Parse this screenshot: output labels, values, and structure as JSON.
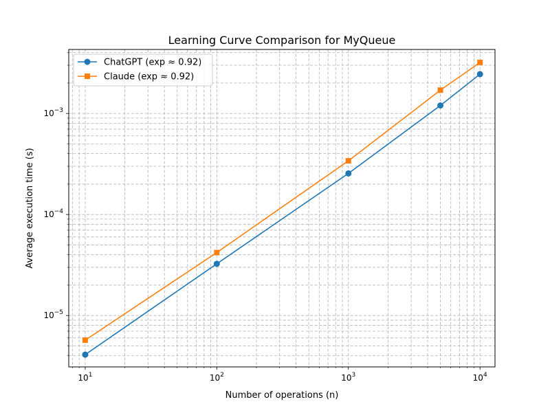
{
  "chart_data": {
    "type": "line",
    "title": "Learning Curve Comparison for MyQueue",
    "xlabel": "Number of operations (n)",
    "ylabel": "Average execution time (s)",
    "x_scale": "log",
    "y_scale": "log",
    "xlim": [
      7.5,
      13000
    ],
    "ylim": [
      3.1e-06,
      0.0043
    ],
    "x_ticks": [
      {
        "value": 10,
        "base": "10",
        "exp": "1"
      },
      {
        "value": 100,
        "base": "10",
        "exp": "2"
      },
      {
        "value": 1000,
        "base": "10",
        "exp": "3"
      },
      {
        "value": 10000,
        "base": "10",
        "exp": "4"
      }
    ],
    "y_ticks": [
      {
        "value": 1e-05,
        "base": "10",
        "exp": "−5"
      },
      {
        "value": 0.0001,
        "base": "10",
        "exp": "−4"
      },
      {
        "value": 0.001,
        "base": "10",
        "exp": "−3"
      }
    ],
    "grid": true,
    "grid_minor": true,
    "legend_position": "top-left",
    "series": [
      {
        "name": "ChatGPT (exp ≈ 0.92)",
        "color": "#1f77b4",
        "marker": "circle",
        "x": [
          10,
          100,
          1000,
          5000,
          10000
        ],
        "y": [
          4.1e-06,
          3.25e-05,
          0.000255,
          0.0012,
          0.00245
        ]
      },
      {
        "name": "Claude (exp ≈ 0.92)",
        "color": "#ff7f0e",
        "marker": "square",
        "x": [
          10,
          100,
          1000,
          5000,
          10000
        ],
        "y": [
          5.7e-06,
          4.2e-05,
          0.00034,
          0.0017,
          0.0032
        ]
      }
    ]
  }
}
